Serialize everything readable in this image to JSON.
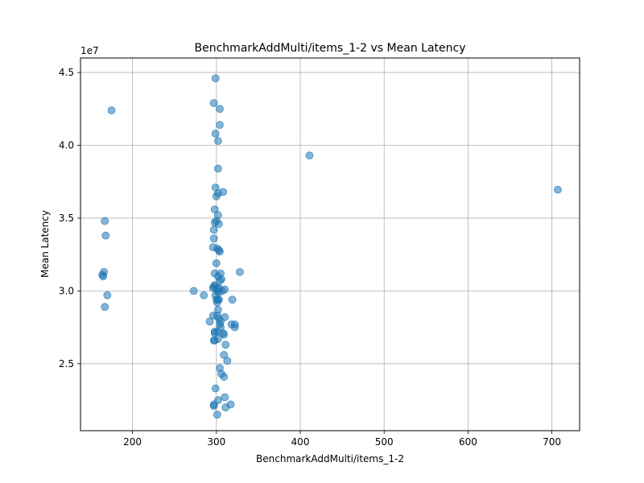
{
  "chart_data": {
    "type": "scatter",
    "title": "BenchmarkAddMulti/items_1-2 vs Mean Latency",
    "xlabel": "BenchmarkAddMulti/items_1-2",
    "ylabel": "Mean Latency",
    "y_multiplier_label": "1e7",
    "xlim": [
      138,
      733
    ],
    "ylim": [
      20400000,
      46000000
    ],
    "xticks": [
      200,
      300,
      400,
      500,
      600,
      700
    ],
    "yticks": [
      25000000,
      30000000,
      35000000,
      40000000,
      45000000
    ],
    "ytick_labels": [
      "2.5",
      "3.0",
      "3.5",
      "4.0",
      "4.5"
    ],
    "grid": true,
    "point_color": "#1f77b4",
    "x": [
      299,
      297,
      304,
      304,
      299,
      302,
      411,
      302,
      299,
      308,
      302,
      300,
      707,
      298,
      302,
      300,
      303,
      298,
      297,
      297,
      296,
      301,
      303,
      304,
      300,
      328,
      298,
      305,
      302,
      306,
      304,
      298,
      297,
      301,
      301,
      303,
      296,
      303,
      307,
      310,
      299,
      303,
      285,
      273,
      319,
      300,
      302,
      301,
      302,
      301,
      303,
      296,
      310,
      305,
      292,
      318,
      304,
      305,
      322,
      322,
      298,
      301,
      298,
      308,
      309,
      298,
      297,
      302,
      311,
      309,
      313,
      304,
      306,
      309,
      299,
      310,
      302,
      297,
      297,
      317,
      311,
      301,
      175,
      167,
      168,
      166,
      164,
      165,
      170,
      167
    ],
    "y": [
      44600000,
      42900000,
      42500000,
      41400000,
      40800000,
      40300000,
      39300000,
      38400000,
      37100000,
      36800000,
      36700000,
      36500000,
      36950000,
      35600000,
      35200000,
      34800000,
      34600000,
      34700000,
      34200000,
      33600000,
      33000000,
      32900000,
      32800000,
      32700000,
      31900000,
      31300000,
      31200000,
      31200000,
      31000000,
      30800000,
      30700000,
      30400000,
      30300000,
      30200000,
      30000000,
      29900000,
      30200000,
      30200000,
      30000000,
      30100000,
      29700000,
      29400000,
      29700000,
      30000000,
      29400000,
      29400000,
      29400000,
      29200000,
      28700000,
      28300000,
      28100000,
      28300000,
      28200000,
      27900000,
      27900000,
      27700000,
      27700000,
      27500000,
      27700000,
      27500000,
      27200000,
      27200000,
      27100000,
      27100000,
      27000000,
      26600000,
      26600000,
      26700000,
      26300000,
      25600000,
      25200000,
      24700000,
      24300000,
      24100000,
      23300000,
      22700000,
      22500000,
      22200000,
      22100000,
      22200000,
      22000000,
      21500000,
      42400000,
      34800000,
      33800000,
      31300000,
      31100000,
      31000000,
      29700000,
      28900000
    ]
  }
}
